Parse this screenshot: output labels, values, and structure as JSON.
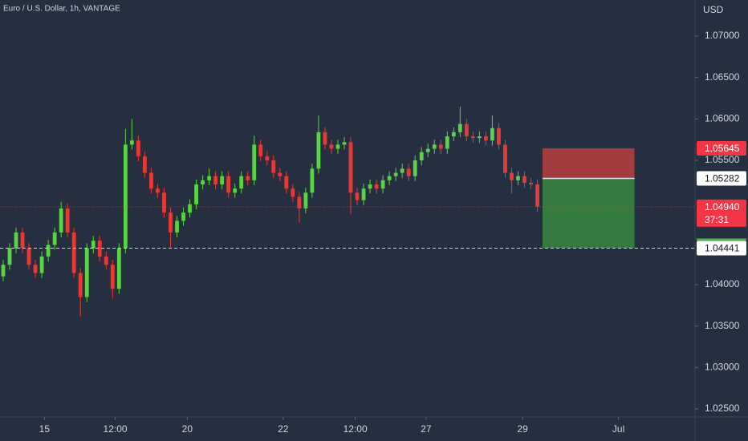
{
  "chart_data": {
    "type": "candlestick",
    "title": "Euro / U.S. Dollar, 1h, VANTAGE",
    "y_axis_label": "USD",
    "up_color": "#5bd146",
    "down_color": "#e53935",
    "x": [
      0,
      1,
      2,
      3,
      4,
      5,
      6,
      7,
      8,
      9,
      10,
      11,
      12,
      13,
      14,
      15,
      16,
      17,
      18,
      19,
      20,
      21,
      22,
      23,
      24,
      25,
      26,
      27,
      28,
      29,
      30,
      31,
      32,
      33,
      34,
      35,
      36,
      37,
      38,
      39,
      40,
      41,
      42,
      43,
      44,
      45,
      46,
      47,
      48,
      49,
      50,
      51,
      52,
      53,
      54,
      55,
      56,
      57,
      58,
      59,
      60,
      61,
      62,
      63,
      64,
      65,
      66,
      67,
      68,
      69,
      70,
      71,
      72,
      73,
      74,
      75,
      76,
      77,
      78,
      79,
      80,
      81,
      82,
      83
    ],
    "open": [
      1.041,
      1.0424,
      1.0444,
      1.0463,
      1.0444,
      1.0424,
      1.0414,
      1.0434,
      1.0448,
      1.0463,
      1.0492,
      1.0463,
      1.0414,
      1.0385,
      1.0444,
      1.0453,
      1.0434,
      1.0424,
      1.0395,
      1.0444,
      1.0569,
      1.0574,
      1.0555,
      1.0535,
      1.0516,
      1.0511,
      1.0487,
      1.0463,
      1.0477,
      1.0487,
      1.0497,
      1.0521,
      1.0526,
      1.0531,
      1.0521,
      1.0531,
      1.0511,
      1.0516,
      1.0531,
      1.0526,
      1.0569,
      1.0555,
      1.055,
      1.0535,
      1.0531,
      1.0516,
      1.0506,
      1.0492,
      1.0511,
      1.054,
      1.0584,
      1.0569,
      1.0564,
      1.0569,
      1.0572,
      1.0511,
      1.0502,
      1.0516,
      1.0521,
      1.0516,
      1.0526,
      1.0531,
      1.0535,
      1.054,
      1.0531,
      1.055,
      1.056,
      1.0564,
      1.0569,
      1.0564,
      1.0579,
      1.0584,
      1.0594,
      1.0579,
      1.0577,
      1.0579,
      1.0574,
      1.0589,
      1.0569,
      1.0535,
      1.0526,
      1.0531,
      1.0523,
      1.0521
    ],
    "high": [
      1.043,
      1.045,
      1.0469,
      1.0469,
      1.045,
      1.043,
      1.044,
      1.0454,
      1.0469,
      1.05,
      1.0498,
      1.0469,
      1.042,
      1.045,
      1.0459,
      1.0459,
      1.044,
      1.043,
      1.045,
      1.0588,
      1.06,
      1.058,
      1.0561,
      1.0541,
      1.0522,
      1.0517,
      1.0493,
      1.0483,
      1.0493,
      1.0503,
      1.0527,
      1.0532,
      1.054,
      1.0537,
      1.0537,
      1.0537,
      1.0522,
      1.0537,
      1.0537,
      1.058,
      1.0575,
      1.0561,
      1.0556,
      1.0541,
      1.0537,
      1.0522,
      1.0512,
      1.0517,
      1.0546,
      1.0604,
      1.059,
      1.0575,
      1.0575,
      1.0578,
      1.0578,
      1.0517,
      1.0522,
      1.0527,
      1.0527,
      1.0532,
      1.0537,
      1.0541,
      1.0546,
      1.0546,
      1.0556,
      1.0566,
      1.057,
      1.0575,
      1.0575,
      1.0585,
      1.059,
      1.0615,
      1.06,
      1.0585,
      1.0585,
      1.0585,
      1.0604,
      1.0595,
      1.0575,
      1.0541,
      1.0537,
      1.0537,
      1.0529,
      1.0527
    ],
    "low": [
      1.0404,
      1.0418,
      1.0438,
      1.0438,
      1.0418,
      1.0408,
      1.0408,
      1.0428,
      1.0442,
      1.0457,
      1.0457,
      1.0408,
      1.0361,
      1.0379,
      1.0438,
      1.0428,
      1.0418,
      1.0383,
      1.0389,
      1.0438,
      1.0563,
      1.0549,
      1.0529,
      1.051,
      1.0505,
      1.0481,
      1.0445,
      1.0457,
      1.0471,
      1.0481,
      1.0491,
      1.0515,
      1.052,
      1.0515,
      1.0515,
      1.0505,
      1.0505,
      1.051,
      1.052,
      1.052,
      1.0549,
      1.0544,
      1.0529,
      1.0525,
      1.051,
      1.05,
      1.0475,
      1.0486,
      1.0505,
      1.0534,
      1.0563,
      1.0558,
      1.0558,
      1.0563,
      1.0485,
      1.0496,
      1.0496,
      1.051,
      1.051,
      1.051,
      1.052,
      1.0525,
      1.0529,
      1.0525,
      1.0525,
      1.0544,
      1.0554,
      1.0558,
      1.0558,
      1.0558,
      1.0573,
      1.0578,
      1.0573,
      1.0571,
      1.0571,
      1.0568,
      1.0568,
      1.0563,
      1.0529,
      1.051,
      1.052,
      1.0517,
      1.0515,
      1.0488
    ],
    "close": [
      1.0424,
      1.0444,
      1.0463,
      1.0444,
      1.0424,
      1.0414,
      1.0434,
      1.0448,
      1.0463,
      1.0492,
      1.0463,
      1.0414,
      1.0385,
      1.0444,
      1.0453,
      1.0434,
      1.0424,
      1.0395,
      1.0444,
      1.0569,
      1.0574,
      1.0555,
      1.0535,
      1.0516,
      1.0511,
      1.0487,
      1.0463,
      1.0477,
      1.0487,
      1.0497,
      1.0521,
      1.0526,
      1.0531,
      1.0521,
      1.0531,
      1.0511,
      1.0516,
      1.0531,
      1.0526,
      1.0569,
      1.0555,
      1.055,
      1.0535,
      1.0531,
      1.0516,
      1.0506,
      1.0492,
      1.0511,
      1.054,
      1.0584,
      1.0569,
      1.0564,
      1.0569,
      1.0572,
      1.0511,
      1.0502,
      1.0516,
      1.0521,
      1.0516,
      1.0526,
      1.0531,
      1.0535,
      1.054,
      1.0531,
      1.055,
      1.056,
      1.0564,
      1.0569,
      1.0564,
      1.0579,
      1.0584,
      1.0594,
      1.0579,
      1.0577,
      1.0579,
      1.0574,
      1.0589,
      1.0569,
      1.0535,
      1.0526,
      1.0531,
      1.0523,
      1.0521,
      1.0494
    ],
    "xlim": [
      -0.5,
      107.5
    ],
    "ylim": [
      1.02403,
      1.07436
    ],
    "xticks": [
      {
        "value": 6.4,
        "label": "15"
      },
      {
        "value": 17.4,
        "label": "12:00"
      },
      {
        "value": 28.6,
        "label": "20"
      },
      {
        "value": 43.5,
        "label": "22"
      },
      {
        "value": 54.7,
        "label": "12:00"
      },
      {
        "value": 65.7,
        "label": "27"
      },
      {
        "value": 80.7,
        "label": "29"
      },
      {
        "value": 95.6,
        "label": "Jul"
      }
    ],
    "yticks": [
      {
        "value": 1.07,
        "label": "1.07000"
      },
      {
        "value": 1.065,
        "label": "1.06500"
      },
      {
        "value": 1.06,
        "label": "1.06000"
      },
      {
        "value": 1.055,
        "label": "1.05500"
      },
      {
        "value": 1.04,
        "label": "1.04000"
      },
      {
        "value": 1.035,
        "label": "1.03500"
      },
      {
        "value": 1.03,
        "label": "1.03000"
      },
      {
        "value": 1.025,
        "label": "1.02500"
      }
    ],
    "grid": false,
    "position": {
      "stop": 1.05645,
      "entry": 1.05282,
      "target": 1.04441,
      "xlim": [
        83.8,
        98.1
      ],
      "stop_color": "#a33c3f",
      "target_color": "#357a3e"
    },
    "current_price": {
      "value": 1.0494,
      "label": "1.04940"
    },
    "countdown": "37:31"
  }
}
